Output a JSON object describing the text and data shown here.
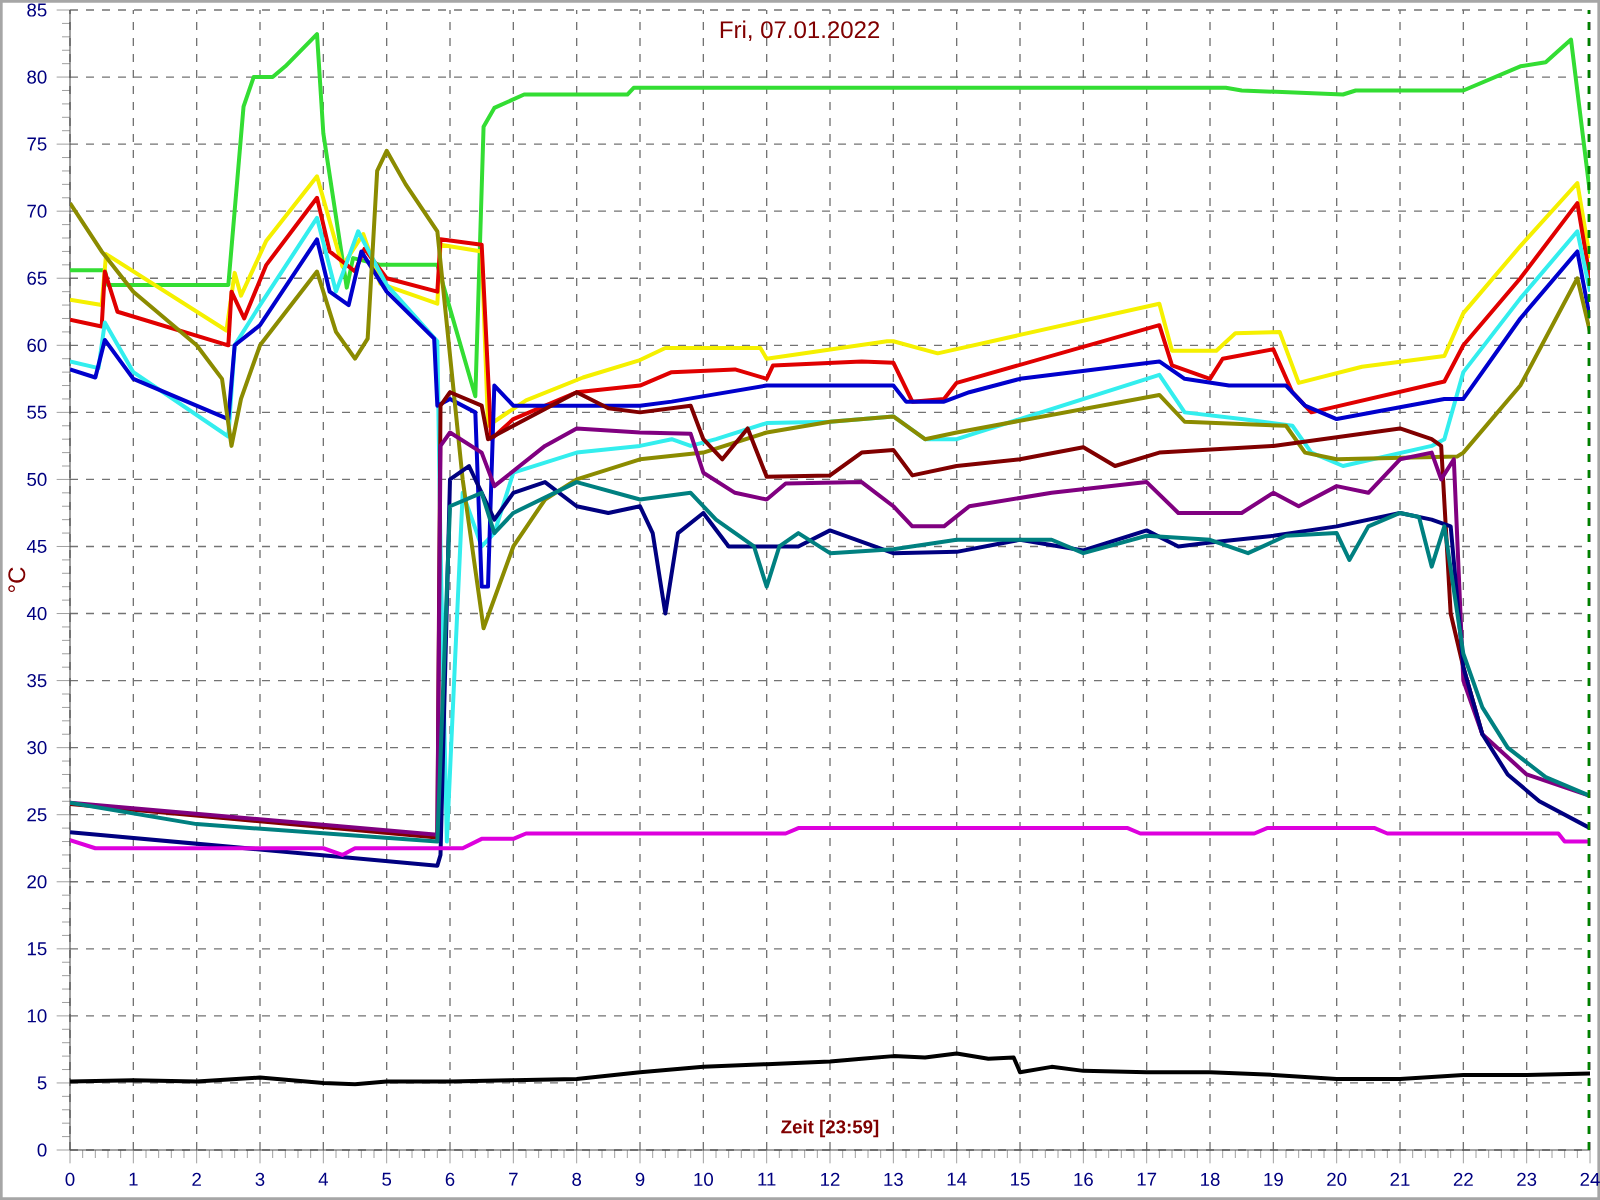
{
  "chart_data": {
    "type": "line",
    "title": "Fri, 07.01.2022",
    "xlabel": "Zeit [23:59]",
    "ylabel": "°C",
    "xlim": [
      0,
      24
    ],
    "ylim": [
      0,
      85
    ],
    "xticks": [
      0,
      1,
      2,
      3,
      4,
      5,
      6,
      7,
      8,
      9,
      10,
      11,
      12,
      13,
      14,
      15,
      16,
      17,
      18,
      19,
      20,
      21,
      22,
      23,
      24
    ],
    "yticks": [
      0,
      5,
      10,
      15,
      20,
      25,
      30,
      35,
      40,
      45,
      50,
      55,
      60,
      65,
      70,
      75,
      80,
      85
    ],
    "grid": true,
    "ref_lines": [
      {
        "axis": "x",
        "value": 23.98,
        "color": "#008000",
        "line_style": "dashed"
      }
    ],
    "series": [
      {
        "color": "#33dd33",
        "x": [
          0,
          0.55,
          0.6,
          2.5,
          2.74,
          2.9,
          3.2,
          3.4,
          3.9,
          4.0,
          4.27,
          4.37,
          4.47,
          4.9,
          5.8,
          6.4,
          6.53,
          6.7,
          7.17,
          8.8,
          8.9,
          18.25,
          18.5,
          20.1,
          20.3,
          22.0,
          22.9,
          23.3,
          23.7,
          24
        ],
        "values": [
          65.6,
          65.6,
          64.5,
          64.5,
          77.8,
          80,
          80,
          80.8,
          83.2,
          75.8,
          67.4,
          64.3,
          66.5,
          66,
          66,
          56.2,
          76.3,
          77.7,
          78.7,
          78.7,
          79.2,
          79.2,
          79,
          78.7,
          79,
          79,
          80.8,
          81.1,
          82.8,
          71.3
        ]
      },
      {
        "color": "#f5f000",
        "x": [
          0,
          0.5,
          0.57,
          2.47,
          2.6,
          2.7,
          3.1,
          3.9,
          4.3,
          4.63,
          4.9,
          5.8,
          5.85,
          6.5,
          6.6,
          7.2,
          8.1,
          9.0,
          9.4,
          10.9,
          11.0,
          12.9,
          13.0,
          13.7,
          17.2,
          17.4,
          18.1,
          18.4,
          19.1,
          19.4,
          20.4,
          21.7,
          22.0,
          22.9,
          23.8,
          24
        ],
        "values": [
          63.4,
          63,
          66.8,
          61.1,
          65.4,
          63.7,
          67.8,
          72.6,
          65.9,
          68.3,
          64.6,
          63.1,
          67.5,
          67,
          54,
          55.9,
          57.6,
          58.9,
          59.8,
          59.8,
          59,
          60.3,
          60.3,
          59.4,
          63.1,
          59.6,
          59.6,
          60.9,
          61,
          57.2,
          58.4,
          59.2,
          62.4,
          67.4,
          72.1,
          66.5
        ]
      },
      {
        "color": "#e00000",
        "x": [
          0,
          0.5,
          0.55,
          0.75,
          2.5,
          2.55,
          2.75,
          3.1,
          3.9,
          4.1,
          4.5,
          4.65,
          5.0,
          5.8,
          5.85,
          6.5,
          6.65,
          7.0,
          8.0,
          9.0,
          9.5,
          10.5,
          11.0,
          11.1,
          12.5,
          13.0,
          13.3,
          13.8,
          14.0,
          17.2,
          17.4,
          18.0,
          18.2,
          19.0,
          19.3,
          19.6,
          21.7,
          22.0,
          22.9,
          23.8,
          24
        ],
        "values": [
          61.9,
          61.4,
          65.5,
          62.5,
          60,
          64,
          62,
          66,
          71,
          67,
          65.5,
          67.2,
          65,
          64,
          67.9,
          67.5,
          53,
          54.5,
          56.5,
          57,
          58,
          58.2,
          57.5,
          58.5,
          58.8,
          58.7,
          55.8,
          56,
          57.2,
          61.5,
          58.5,
          57.5,
          59,
          59.7,
          56.5,
          55,
          57.3,
          60,
          65,
          70.6,
          65
        ]
      },
      {
        "color": "#33eeee",
        "x": [
          0,
          0.45,
          0.55,
          1.0,
          2.5,
          2.6,
          3.0,
          3.9,
          4.2,
          4.55,
          5.0,
          5.8,
          5.85,
          5.95,
          6.2,
          6.5,
          6.7,
          7.0,
          8.0,
          9.0,
          9.5,
          9.8,
          10.2,
          11.0,
          12.0,
          13.0,
          13.5,
          14.0,
          17.2,
          17.6,
          18.5,
          19.3,
          19.6,
          20.1,
          21.5,
          21.7,
          22.0,
          22.9,
          23.8,
          24
        ],
        "values": [
          58.8,
          58.3,
          61.7,
          58,
          53.2,
          60,
          63,
          69.5,
          64,
          68.5,
          64.5,
          60.3,
          45,
          23,
          49,
          45,
          46,
          50.5,
          52,
          52.5,
          53,
          52.5,
          53,
          54.2,
          54.3,
          54.7,
          53,
          53,
          57.8,
          55,
          54.5,
          54,
          52,
          51,
          52.5,
          53,
          58,
          63.5,
          68.5,
          64
        ]
      },
      {
        "color": "#0000cc",
        "x": [
          0,
          0.4,
          0.55,
          1.0,
          2.5,
          2.6,
          3.0,
          3.9,
          4.1,
          4.4,
          4.6,
          5.0,
          5.75,
          5.8,
          6.0,
          6.4,
          6.5,
          6.6,
          6.7,
          7.0,
          9.0,
          9.5,
          11.0,
          13.0,
          13.2,
          13.8,
          14.2,
          15.0,
          17.2,
          17.6,
          18.3,
          19.2,
          19.5,
          20.0,
          21.7,
          22.0,
          22.9,
          23.8,
          24
        ],
        "values": [
          58.2,
          57.6,
          60.4,
          57.5,
          54.5,
          60,
          61.5,
          67.9,
          64,
          63,
          67,
          64,
          60.5,
          55.5,
          56,
          55,
          42,
          42,
          57,
          55.5,
          55.5,
          55.8,
          57,
          57,
          55.8,
          55.8,
          56.5,
          57.5,
          58.8,
          57.5,
          57,
          57,
          55.5,
          54.5,
          56,
          56,
          62,
          67,
          62
        ]
      },
      {
        "color": "#8b8b00",
        "x": [
          0,
          0.5,
          1.0,
          2.0,
          2.4,
          2.55,
          2.7,
          3.0,
          3.9,
          4.2,
          4.5,
          4.7,
          4.85,
          5.0,
          5.3,
          5.8,
          6.2,
          6.53,
          7.0,
          7.5,
          8.0,
          9.0,
          10.0,
          11.0,
          12.0,
          13.0,
          13.5,
          14.0,
          17.2,
          17.6,
          19.2,
          19.5,
          20.0,
          21.9,
          22.0,
          22.9,
          23.8,
          24
        ],
        "values": [
          70.6,
          67,
          64,
          60,
          57.5,
          52.5,
          56,
          60,
          65.5,
          61,
          59,
          60.5,
          73,
          74.5,
          72,
          68.5,
          50,
          38.9,
          45,
          48.5,
          50,
          51.5,
          52,
          53.5,
          54.3,
          54.7,
          53,
          53.5,
          56.3,
          54.3,
          54,
          52,
          51.5,
          51.7,
          52,
          57,
          65,
          61
        ]
      },
      {
        "color": "#800000",
        "x": [
          0,
          5.8,
          5.85,
          6.0,
          6.5,
          6.6,
          7.0,
          8.0,
          8.5,
          9.0,
          9.8,
          10.0,
          10.3,
          10.7,
          11.0,
          12.0,
          12.5,
          13.0,
          13.3,
          14.0,
          15.0,
          16.0,
          16.5,
          17.2,
          19.0,
          21.0,
          21.5,
          21.65,
          21.8,
          22.0,
          22.3
        ],
        "values": [
          25.8,
          23.3,
          55.5,
          56.5,
          55.5,
          53,
          54,
          56.5,
          55.3,
          55,
          55.5,
          53,
          51.5,
          53.8,
          50.2,
          50.3,
          52,
          52.2,
          50.3,
          51,
          51.5,
          52.4,
          51,
          52,
          52.5,
          53.8,
          53,
          52.5,
          40,
          36,
          31
        ]
      },
      {
        "color": "#800080",
        "x": [
          0,
          5.8,
          5.85,
          6.0,
          6.5,
          6.7,
          7.5,
          8.0,
          9.0,
          9.8,
          10.0,
          10.5,
          11.0,
          11.3,
          12.5,
          13.0,
          13.3,
          13.8,
          14.2,
          15.5,
          17.0,
          17.5,
          18.5,
          19.0,
          19.4,
          20.0,
          20.5,
          21.0,
          21.5,
          21.65,
          21.85,
          22.0,
          22.3,
          23.0,
          24
        ],
        "values": [
          25.9,
          23.5,
          52.5,
          53.5,
          52,
          49.5,
          52.5,
          53.8,
          53.5,
          53.4,
          50.5,
          49,
          48.5,
          49.7,
          49.8,
          48,
          46.5,
          46.5,
          48,
          49,
          49.8,
          47.5,
          47.5,
          49,
          48,
          49.5,
          49,
          51.5,
          52,
          50,
          51.5,
          35,
          31,
          28,
          26.4
        ]
      },
      {
        "color": "#000080",
        "x": [
          0,
          5.8,
          5.85,
          6.0,
          6.3,
          6.5,
          6.7,
          7.0,
          7.5,
          8.0,
          8.5,
          9.0,
          9.2,
          9.4,
          9.6,
          10.0,
          10.4,
          11.5,
          12.0,
          13.0,
          14.0,
          15.0,
          16.0,
          17.0,
          17.5,
          18.0,
          19.0,
          20.0,
          21.0,
          21.5,
          21.8,
          22.0,
          22.3,
          22.7,
          23.2,
          24
        ],
        "values": [
          23.7,
          21.2,
          22,
          50,
          51,
          49,
          47,
          49,
          49.8,
          48,
          47.5,
          48,
          46,
          40,
          46,
          47.5,
          45,
          45,
          46.2,
          44.5,
          44.6,
          45.5,
          44.7,
          46.2,
          45,
          45.3,
          45.8,
          46.5,
          47.5,
          47,
          46.5,
          36,
          31,
          28,
          26,
          24
        ]
      },
      {
        "color": "#008080",
        "x": [
          0,
          2,
          5.8,
          6.0,
          6.5,
          6.7,
          7.0,
          8.0,
          9.0,
          9.8,
          10.2,
          10.8,
          11.0,
          11.2,
          11.5,
          12.0,
          13.0,
          14.0,
          15.5,
          16.0,
          17.0,
          18.0,
          18.6,
          19.2,
          20.0,
          20.2,
          20.5,
          21.0,
          21.3,
          21.5,
          21.7,
          22.0,
          22.3,
          22.7,
          23.3,
          24
        ],
        "values": [
          25.9,
          24.3,
          23,
          48,
          49,
          46,
          47.5,
          49.8,
          48.5,
          49,
          47,
          45,
          42,
          45,
          46,
          44.5,
          44.8,
          45.5,
          45.5,
          44.5,
          45.8,
          45.5,
          44.5,
          45.8,
          46,
          44,
          46.5,
          47.5,
          47.2,
          43.5,
          46.5,
          37,
          33,
          30,
          27.8,
          26.4
        ]
      },
      {
        "color": "#dd00dd",
        "x": [
          0,
          0.4,
          4.0,
          4.3,
          4.5,
          5.8,
          6.2,
          6.5,
          7.0,
          7.2,
          11.3,
          11.5,
          16.7,
          16.9,
          18.7,
          18.9,
          20.6,
          20.8,
          23.5,
          23.6,
          24
        ],
        "values": [
          23.1,
          22.5,
          22.5,
          22,
          22.5,
          22.5,
          22.5,
          23.2,
          23.2,
          23.6,
          23.6,
          24,
          24,
          23.6,
          23.6,
          24,
          24,
          23.6,
          23.6,
          23,
          23
        ]
      },
      {
        "color": "#000000",
        "x": [
          0,
          1,
          2,
          3,
          4,
          4.5,
          5,
          6,
          7,
          8,
          9,
          10,
          11,
          12,
          12.5,
          13,
          13.5,
          14,
          14.5,
          14.9,
          15.0,
          15.5,
          16,
          17,
          18,
          19,
          20,
          21,
          22,
          23,
          24
        ],
        "values": [
          5.1,
          5.2,
          5.1,
          5.4,
          5.0,
          4.9,
          5.1,
          5.1,
          5.2,
          5.3,
          5.8,
          6.2,
          6.4,
          6.6,
          6.8,
          7.0,
          6.9,
          7.2,
          6.8,
          6.9,
          5.8,
          6.2,
          5.9,
          5.8,
          5.8,
          5.6,
          5.3,
          5.3,
          5.6,
          5.6,
          5.7
        ]
      }
    ]
  }
}
